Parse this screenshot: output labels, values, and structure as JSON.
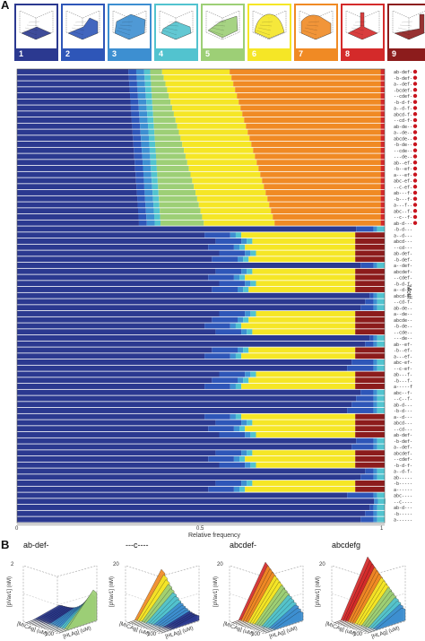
{
  "panel_a": {
    "letter": "A",
    "classes": [
      {
        "num": "1",
        "color": "#2b3990",
        "surface": "flat"
      },
      {
        "num": "2",
        "color": "#2e56b8",
        "surface": "step"
      },
      {
        "num": "3",
        "color": "#3d8fd1",
        "surface": "ridge"
      },
      {
        "num": "4",
        "color": "#52c3cf",
        "surface": "low"
      },
      {
        "num": "5",
        "color": "#9dcf76",
        "surface": "fold"
      },
      {
        "num": "6",
        "color": "#f5e626",
        "surface": "dome"
      },
      {
        "num": "7",
        "color": "#f08a24",
        "surface": "cliff"
      },
      {
        "num": "8",
        "color": "#d42a2a",
        "surface": "spike"
      },
      {
        "num": "9",
        "color": "#8c1c1c",
        "surface": "wall"
      }
    ],
    "x_axis": {
      "label": "Relative frequency",
      "ticks": [
        "0",
        "0.5",
        "1"
      ]
    },
    "side_label": "Motif",
    "row_labels": [
      "ab-def-",
      "-b-def-",
      "a--def-",
      "-bcdef-",
      "--cdef-",
      "-b-d-f-",
      "a--d-f-",
      "abcd-f-",
      "--cd-f-",
      "ab-de--",
      "a--de--",
      "abcde--",
      "-b-de--",
      "--cde--",
      "---de--",
      "ab--ef-",
      "-b--ef-",
      "a---ef-",
      "abc-ef-",
      "--c-ef-",
      "ab---f-",
      "-b---f-",
      "a---f--",
      "abc--f-",
      "--c--f-",
      "ab-d---",
      "-b-d---",
      "a--d---",
      "abcd---",
      "--cd---",
      "ab-def-",
      "-b-def-",
      "a--def-",
      "abcdef-",
      "--cdef-",
      "-b-d-f-",
      "a--d-f-",
      "abcd-f-",
      "--cd-f-",
      "ab-de--",
      "a--de--",
      "abcde--",
      "-b-de--",
      "--cde--",
      "---de--",
      "ab--ef-",
      "-b--ef-",
      "a---ef-",
      "abc-ef-",
      "--c-ef-",
      "ab---f-",
      "-b---f-",
      "a-----f",
      "abc--f-",
      "--c--f-",
      "ab-d---",
      "-b-d---",
      "a--d---",
      "abcd---",
      "--cd---",
      "ab-def-",
      "-b-def-",
      "a--def-",
      "abcdef-",
      "--cdef-",
      "-b-d-f-",
      "a--d-f-",
      "ab-----",
      "-b-----",
      "a------",
      "abc----",
      "--c----",
      "ab-d---",
      "-b-----",
      "a------"
    ]
  },
  "panel_b": {
    "letter": "B",
    "plots": [
      {
        "title": "ab-def-",
        "zlabel": "[pVav1] (nM)",
        "xlabel": "[HLAg] (uM)",
        "ylabel": "[MICAg] (uM)",
        "ztick_top": "2",
        "kind": "valley"
      },
      {
        "title": "---c----",
        "zlabel": "[pVav1] (nM)",
        "xlabel": "[HLAg] (uM)",
        "ylabel": "[MICAg] (uM)",
        "ztick_top": "20",
        "kind": "rise"
      },
      {
        "title": "abcdef-",
        "zlabel": "[pVav1] (nM)",
        "xlabel": "[HLAg] (uM)",
        "ylabel": "[MICAg] (uM)",
        "ztick_top": "20",
        "kind": "ridge"
      },
      {
        "title": "abcdefg",
        "zlabel": "[pVav1] (nM)",
        "xlabel": "[HLAg] (uM)",
        "ylabel": "[MICAg] (uM)",
        "ztick_top": "20",
        "kind": "ridge2"
      }
    ],
    "axis_ticks": [
      "0",
      "100"
    ]
  },
  "chart_data": {
    "type": "bar",
    "orientation": "horizontal",
    "stacked": true,
    "xlabel": "Relative frequency",
    "xlim": [
      0,
      1
    ],
    "ylabel": "Motif",
    "series_order": [
      "1",
      "2",
      "3",
      "4",
      "5",
      "6",
      "7",
      "8",
      "9"
    ],
    "series_colors": [
      "#2b3990",
      "#2e56b8",
      "#3d8fd1",
      "#52c3cf",
      "#9dcf76",
      "#f5e626",
      "#f08a24",
      "#d42a2a",
      "#8c1c1c"
    ],
    "row_count": 75
  }
}
